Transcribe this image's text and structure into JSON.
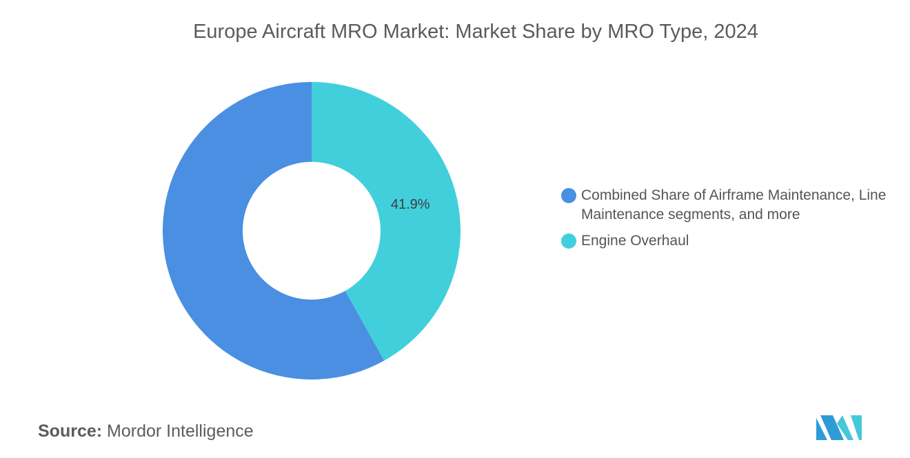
{
  "title": "Europe Aircraft MRO Market: Market Share by MRO Type, 2024",
  "source": {
    "label": "Source:",
    "value": "Mordor Intelligence"
  },
  "colors": {
    "title": "#5a5a5a",
    "text": "#555555",
    "logo_left": "#2f9bd6",
    "logo_right": "#45c8d8"
  },
  "legend_placement": "right",
  "chart_data": {
    "type": "pie",
    "title": "Europe Aircraft MRO Market: Market Share by MRO Type, 2024",
    "categories": [
      "Combined Share of Airframe Maintenance, Line Maintenance segments, and more",
      "Engine Overhaul"
    ],
    "values": [
      58.1,
      41.9
    ],
    "colors": [
      "#4a8fe2",
      "#41d0db"
    ],
    "data_labels": [
      "",
      "41.9%"
    ],
    "donut": true,
    "start_angle_deg": 0,
    "direction": "clockwise",
    "legend": "right"
  }
}
